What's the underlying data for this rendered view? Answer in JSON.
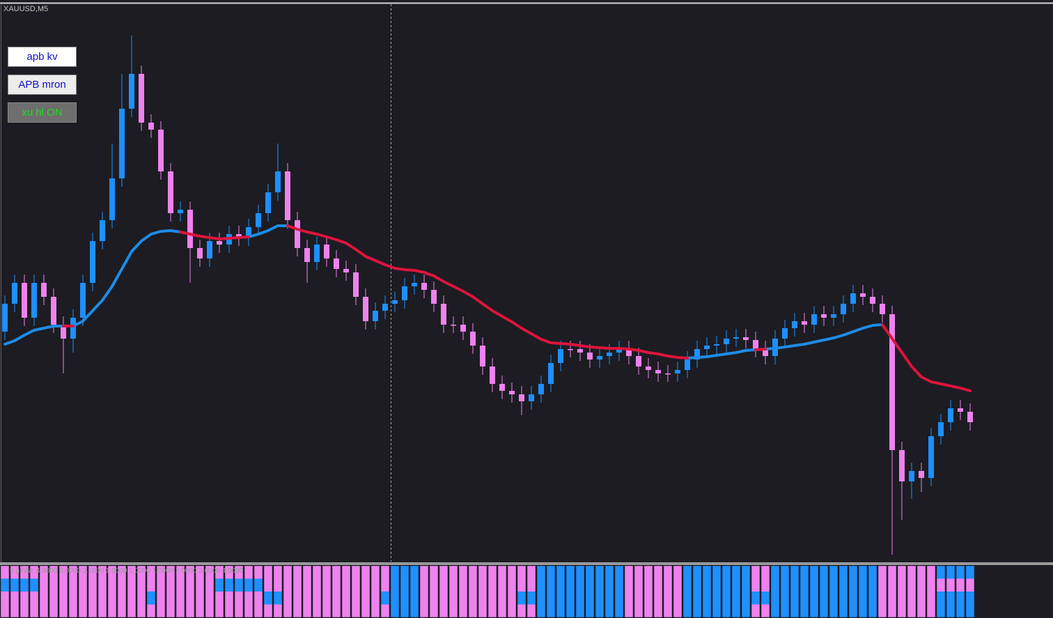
{
  "chart_data": {
    "type": "candlestick",
    "title": "XAUUSD,M5",
    "ylim": [
      0,
      800
    ],
    "up_color": "#1e90ff",
    "down_color": "#ee82ee",
    "open": [
      330,
      370,
      400,
      350,
      400,
      380,
      340,
      320,
      350,
      400,
      460,
      490,
      550,
      650,
      700,
      630,
      620,
      560,
      500,
      505,
      450,
      435,
      460,
      455,
      470,
      465,
      480,
      500,
      530,
      560,
      490,
      450,
      430,
      455,
      435,
      420,
      415,
      380,
      345,
      360,
      370,
      375,
      395,
      400,
      390,
      370,
      340,
      340,
      330,
      310,
      280,
      255,
      245,
      240,
      230,
      240,
      255,
      285,
      305,
      305,
      300,
      290,
      295,
      300,
      305,
      295,
      280,
      275,
      270,
      270,
      275,
      290,
      305,
      310,
      312,
      320,
      322,
      318,
      305,
      295,
      320,
      335,
      345,
      340,
      355,
      350,
      355,
      370,
      385,
      380,
      370,
      355,
      160,
      115,
      130,
      120,
      180,
      200,
      220,
      215
    ],
    "high": [
      382,
      412,
      412,
      412,
      412,
      392,
      352,
      362,
      412,
      472,
      502,
      600,
      700,
      755,
      712,
      642,
      632,
      572,
      517,
      517,
      462,
      472,
      472,
      482,
      482,
      492,
      512,
      542,
      600,
      572,
      502,
      462,
      467,
      467,
      447,
      432,
      427,
      392,
      372,
      382,
      387,
      407,
      412,
      412,
      402,
      382,
      352,
      352,
      342,
      322,
      292,
      267,
      257,
      252,
      252,
      267,
      297,
      317,
      317,
      317,
      312,
      307,
      312,
      317,
      317,
      307,
      292,
      287,
      282,
      287,
      302,
      317,
      322,
      324,
      332,
      334,
      334,
      330,
      317,
      332,
      347,
      357,
      357,
      367,
      367,
      367,
      382,
      397,
      397,
      392,
      382,
      367,
      172,
      142,
      142,
      192,
      212,
      232,
      232,
      227
    ],
    "low": [
      318,
      358,
      338,
      338,
      368,
      328,
      270,
      300,
      338,
      388,
      448,
      478,
      538,
      638,
      618,
      608,
      548,
      488,
      488,
      400,
      423,
      423,
      443,
      443,
      453,
      453,
      468,
      488,
      518,
      478,
      438,
      400,
      418,
      423,
      408,
      403,
      368,
      333,
      333,
      348,
      358,
      363,
      383,
      378,
      358,
      328,
      328,
      318,
      298,
      268,
      243,
      233,
      228,
      210,
      218,
      228,
      243,
      273,
      293,
      288,
      278,
      278,
      283,
      288,
      283,
      268,
      263,
      258,
      258,
      258,
      263,
      278,
      293,
      298,
      300,
      308,
      306,
      293,
      283,
      283,
      308,
      323,
      328,
      328,
      338,
      338,
      343,
      358,
      368,
      358,
      343,
      10,
      60,
      90,
      100,
      108,
      168,
      188,
      203,
      188
    ],
    "close": [
      370,
      400,
      350,
      400,
      380,
      340,
      320,
      350,
      400,
      460,
      490,
      550,
      650,
      700,
      630,
      620,
      560,
      500,
      505,
      450,
      435,
      460,
      455,
      470,
      465,
      480,
      500,
      530,
      560,
      490,
      450,
      430,
      455,
      435,
      420,
      415,
      380,
      345,
      360,
      370,
      375,
      395,
      400,
      390,
      370,
      340,
      340,
      330,
      310,
      280,
      255,
      245,
      240,
      230,
      240,
      255,
      285,
      305,
      305,
      300,
      290,
      295,
      300,
      305,
      295,
      280,
      275,
      270,
      270,
      275,
      290,
      305,
      310,
      312,
      320,
      322,
      318,
      305,
      295,
      320,
      335,
      345,
      340,
      355,
      350,
      355,
      370,
      385,
      380,
      370,
      355,
      160,
      115,
      130,
      120,
      180,
      200,
      220,
      215,
      200
    ],
    "series": [
      {
        "color": "#1e8ce8",
        "values": [
          312,
          317,
          325,
          332,
          335,
          338,
          338,
          338,
          345,
          360,
          375,
          395,
          420,
          445,
          460,
          470,
          474,
          475,
          473,
          null,
          null,
          null,
          null,
          null,
          null,
          466,
          470,
          475,
          482,
          482,
          null,
          null,
          null,
          null,
          null,
          null,
          null,
          null,
          null,
          null,
          null,
          null,
          null,
          null,
          null,
          null,
          null,
          null,
          null,
          null,
          null,
          null,
          null,
          null,
          null,
          null,
          null,
          null,
          null,
          null,
          null,
          null,
          null,
          null,
          null,
          null,
          null,
          null,
          null,
          null,
          292,
          293,
          294,
          296,
          298,
          300,
          303,
          304,
          305,
          306,
          308,
          310,
          312,
          315,
          318,
          321,
          325,
          330,
          335,
          339,
          340,
          null,
          null,
          null,
          null,
          null,
          null,
          null,
          null,
          null
        ]
      },
      {
        "color": "#dc143c",
        "values": [
          null,
          null,
          null,
          null,
          null,
          null,
          338,
          338,
          null,
          null,
          null,
          null,
          null,
          null,
          null,
          null,
          null,
          null,
          473,
          470,
          467,
          465,
          463,
          464,
          465,
          466,
          null,
          null,
          null,
          482,
          477,
          473,
          470,
          466,
          462,
          457,
          448,
          438,
          432,
          426,
          421,
          419,
          418,
          415,
          410,
          402,
          395,
          388,
          380,
          370,
          360,
          352,
          344,
          335,
          327,
          319,
          314,
          313,
          312,
          310,
          308,
          307,
          306,
          306,
          305,
          303,
          300,
          298,
          295,
          293,
          292,
          null,
          null,
          null,
          null,
          null,
          null,
          304,
          305,
          null,
          null,
          null,
          null,
          null,
          null,
          null,
          null,
          null,
          null,
          null,
          340,
          320,
          300,
          280,
          265,
          258,
          255,
          252,
          249,
          245
        ]
      }
    ],
    "histogram": {
      "label": "5 g hist: 4.0000 3.0000 2.0000 1.0000 1.0000 1.0000 2.0000 3.0000 4.0000",
      "up_color": "#1e90ff",
      "down_color": "#ee82ee",
      "runs": [
        {
          "count": 4,
          "rows": [
            0,
            1,
            0,
            0
          ]
        },
        {
          "count": 11,
          "rows": [
            0,
            0,
            0,
            0
          ]
        },
        {
          "count": 1,
          "rows": [
            0,
            0,
            1,
            0
          ]
        },
        {
          "count": 6,
          "rows": [
            0,
            0,
            0,
            0
          ]
        },
        {
          "count": 5,
          "rows": [
            0,
            1,
            0,
            0
          ]
        },
        {
          "count": 2,
          "rows": [
            0,
            0,
            1,
            0
          ]
        },
        {
          "count": 10,
          "rows": [
            0,
            0,
            0,
            0
          ]
        },
        {
          "count": 1,
          "rows": [
            0,
            0,
            1,
            0
          ]
        },
        {
          "count": 3,
          "rows": [
            1,
            1,
            1,
            1
          ]
        },
        {
          "count": 10,
          "rows": [
            0,
            0,
            0,
            0
          ]
        },
        {
          "count": 2,
          "rows": [
            0,
            0,
            1,
            0
          ]
        },
        {
          "count": 9,
          "rows": [
            1,
            1,
            1,
            1
          ]
        },
        {
          "count": 6,
          "rows": [
            0,
            0,
            0,
            0
          ]
        },
        {
          "count": 7,
          "rows": [
            1,
            1,
            1,
            1
          ]
        },
        {
          "count": 2,
          "rows": [
            0,
            0,
            1,
            0
          ]
        },
        {
          "count": 11,
          "rows": [
            1,
            1,
            1,
            1
          ]
        },
        {
          "count": 6,
          "rows": [
            0,
            0,
            0,
            0
          ]
        },
        {
          "count": 4,
          "rows": [
            1,
            0,
            1,
            1
          ]
        }
      ]
    }
  },
  "buttons": [
    "apb kv",
    "APB mron",
    "xu hl ON"
  ]
}
